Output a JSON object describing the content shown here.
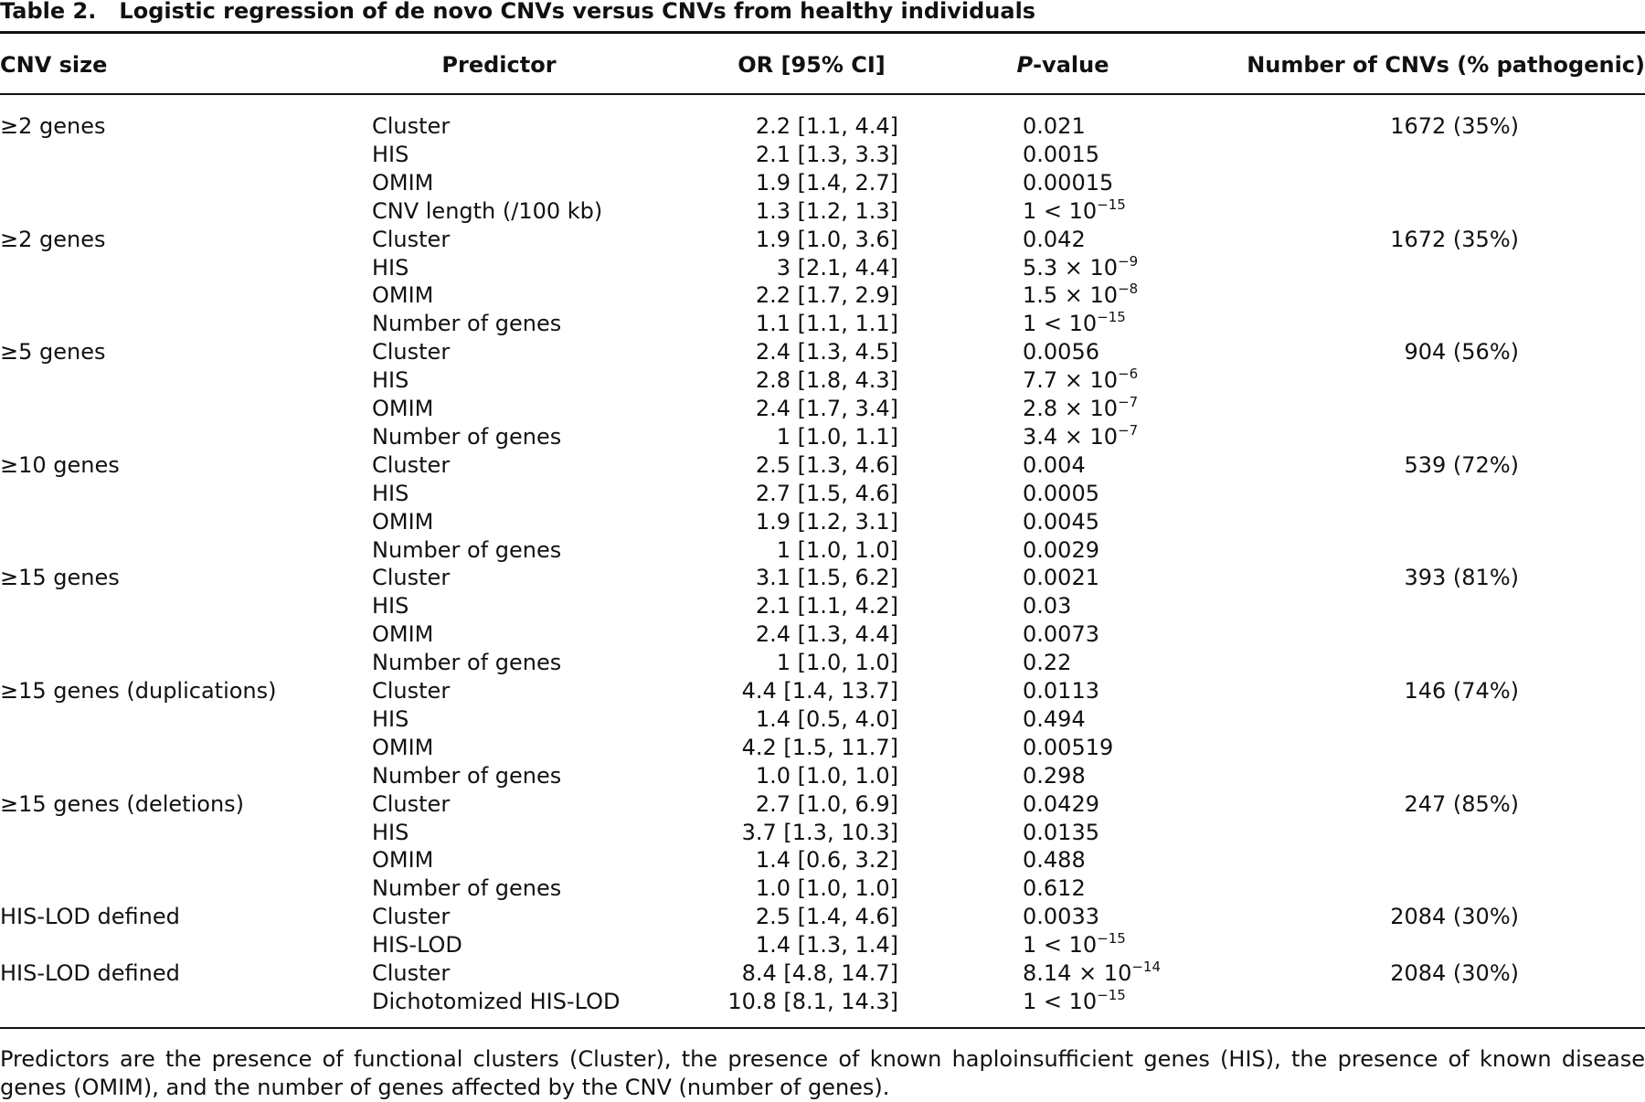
{
  "title": {
    "label": "Table 2.",
    "text": "Logistic regression of de novo CNVs versus CNVs from healthy individuals"
  },
  "header": {
    "size": "CNV size",
    "predictor": "Predictor",
    "or": "OR [95% CI]",
    "p": {
      "italic": "P",
      "rest": "-value"
    },
    "count": "Number of CNVs (% pathogenic)"
  },
  "groups": [
    {
      "size": "≥2 genes",
      "count": "1672 (35%)",
      "rows": [
        {
          "predictor": "Cluster",
          "or": "2.2 [1.1, 4.4]",
          "p": "0.021"
        },
        {
          "predictor": "HIS",
          "or": "2.1 [1.3, 3.3]",
          "p": "0.0015"
        },
        {
          "predictor": "OMIM",
          "or": "1.9 [1.4, 2.7]",
          "p": "0.00015"
        },
        {
          "predictor": "CNV length (/100 kb)",
          "or": "1.3 [1.2, 1.3]",
          "p": "1 < 10",
          "p_exp": "−15"
        }
      ]
    },
    {
      "size": "≥2 genes",
      "count": "1672 (35%)",
      "rows": [
        {
          "predictor": "Cluster",
          "or": "1.9 [1.0, 3.6]",
          "p": "0.042"
        },
        {
          "predictor": "HIS",
          "or": "3 [2.1, 4.4]",
          "p": "5.3 × 10",
          "p_exp": "−9"
        },
        {
          "predictor": "OMIM",
          "or": "2.2 [1.7, 2.9]",
          "p": "1.5 × 10",
          "p_exp": "−8"
        },
        {
          "predictor": "Number of genes",
          "or": "1.1 [1.1, 1.1]",
          "p": "1 < 10",
          "p_exp": "−15"
        }
      ]
    },
    {
      "size": "≥5 genes",
      "count": "904 (56%)",
      "rows": [
        {
          "predictor": "Cluster",
          "or": "2.4 [1.3, 4.5]",
          "p": "0.0056"
        },
        {
          "predictor": "HIS",
          "or": "2.8 [1.8, 4.3]",
          "p": "7.7 × 10",
          "p_exp": "−6"
        },
        {
          "predictor": "OMIM",
          "or": "2.4 [1.7, 3.4]",
          "p": "2.8 × 10",
          "p_exp": "−7"
        },
        {
          "predictor": "Number of genes",
          "or": "1 [1.0, 1.1]",
          "p": "3.4 × 10",
          "p_exp": "−7"
        }
      ]
    },
    {
      "size": "≥10 genes",
      "count": "539 (72%)",
      "rows": [
        {
          "predictor": "Cluster",
          "or": "2.5 [1.3, 4.6]",
          "p": "0.004"
        },
        {
          "predictor": "HIS",
          "or": "2.7 [1.5, 4.6]",
          "p": "0.0005"
        },
        {
          "predictor": "OMIM",
          "or": "1.9 [1.2, 3.1]",
          "p": "0.0045"
        },
        {
          "predictor": "Number of genes",
          "or": "1 [1.0, 1.0]",
          "p": "0.0029"
        }
      ]
    },
    {
      "size": "≥15 genes",
      "count": "393 (81%)",
      "rows": [
        {
          "predictor": "Cluster",
          "or": "3.1 [1.5, 6.2]",
          "p": "0.0021"
        },
        {
          "predictor": "HIS",
          "or": "2.1 [1.1, 4.2]",
          "p": "0.03"
        },
        {
          "predictor": "OMIM",
          "or": "2.4 [1.3, 4.4]",
          "p": "0.0073"
        },
        {
          "predictor": "Number of genes",
          "or": "1 [1.0, 1.0]",
          "p": "0.22"
        }
      ]
    },
    {
      "size": "≥15 genes (duplications)",
      "count": "146 (74%)",
      "rows": [
        {
          "predictor": "Cluster",
          "or": "4.4 [1.4, 13.7]",
          "p": "0.0113"
        },
        {
          "predictor": "HIS",
          "or": "1.4 [0.5, 4.0]",
          "p": "0.494"
        },
        {
          "predictor": "OMIM",
          "or": "4.2 [1.5, 11.7]",
          "p": "0.00519"
        },
        {
          "predictor": "Number of genes",
          "or": "1.0 [1.0, 1.0]",
          "p": "0.298"
        }
      ]
    },
    {
      "size": "≥15 genes (deletions)",
      "count": "247 (85%)",
      "rows": [
        {
          "predictor": "Cluster",
          "or": "2.7 [1.0, 6.9]",
          "p": "0.0429"
        },
        {
          "predictor": "HIS",
          "or": "3.7 [1.3, 10.3]",
          "p": "0.0135"
        },
        {
          "predictor": "OMIM",
          "or": "1.4 [0.6, 3.2]",
          "p": "0.488"
        },
        {
          "predictor": "Number of genes",
          "or": "1.0 [1.0, 1.0]",
          "p": "0.612"
        }
      ]
    },
    {
      "size": "HIS-LOD defined",
      "count": "2084 (30%)",
      "rows": [
        {
          "predictor": "Cluster",
          "or": "2.5 [1.4, 4.6]",
          "p": "0.0033"
        },
        {
          "predictor": "HIS-LOD",
          "or": "1.4 [1.3, 1.4]",
          "p": "1 < 10",
          "p_exp": "−15"
        }
      ]
    },
    {
      "size": "HIS-LOD defined",
      "count": "2084 (30%)",
      "rows": [
        {
          "predictor": "Cluster",
          "or": "8.4 [4.8, 14.7]",
          "p": "8.14 × 10",
          "p_exp": "−14"
        },
        {
          "predictor": "Dichotomized HIS-LOD",
          "or": "10.8 [8.1, 14.3]",
          "p": "1 < 10",
          "p_exp": "−15"
        }
      ]
    }
  ],
  "footnote": "Predictors are the presence of functional clusters (Cluster), the presence of known haploinsufficient genes (HIS), the presence of known disease genes (OMIM), and the number of genes affected by the CNV (number of genes)."
}
